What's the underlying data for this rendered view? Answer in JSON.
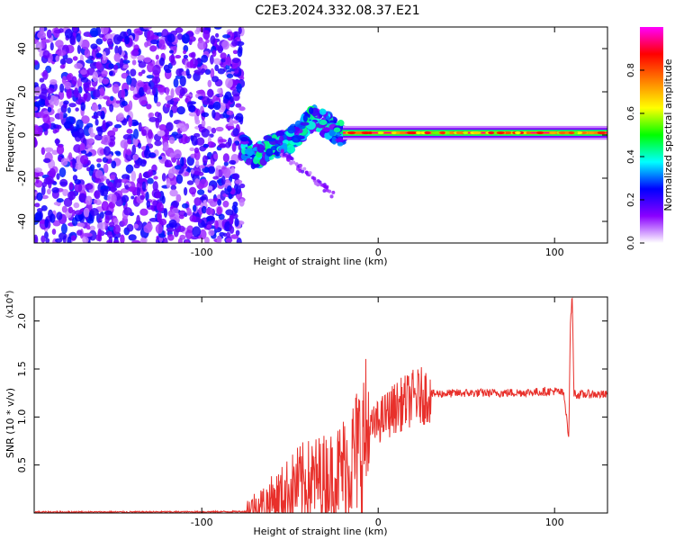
{
  "title": "C2E3.2024.332.08.37.E21",
  "chart_data": [
    {
      "type": "heatmap",
      "xlabel": "Height of straight line (km)",
      "ylabel": "Frequency (Hz)",
      "xlim": [
        -195,
        130
      ],
      "ylim": [
        -50,
        50
      ],
      "x_ticks": [
        -100,
        0,
        100
      ],
      "x_tick_labels": [
        "-100",
        "0",
        "100"
      ],
      "y_ticks": [
        -40,
        -20,
        0,
        20,
        40
      ],
      "y_tick_labels": [
        "-40",
        "-20",
        "0",
        "20",
        "40"
      ],
      "grid": false,
      "colorbar": {
        "label": "Normalized spectral amplitude",
        "range": [
          0,
          1
        ],
        "ticks": [
          0.0,
          0.2,
          0.4,
          0.6,
          0.8
        ],
        "tick_labels": [
          "0.0",
          "0.2",
          "0.4",
          "0.6",
          "0.8"
        ],
        "colors": [
          "#ffffff",
          "#8a00ff",
          "#0000ff",
          "#00ffff",
          "#00ff00",
          "#ffff00",
          "#ff8000",
          "#ff0000",
          "#ff00ff"
        ]
      },
      "regions": [
        {
          "description_x": [
            -195,
            -77
          ],
          "amplitude_level": 0.12,
          "pattern": "noise across all frequencies"
        },
        {
          "description_x": [
            -77,
            -20
          ],
          "amplitude_level": 0.3,
          "pattern": "curved streak near 0 Hz with branch descending to about -28 Hz"
        },
        {
          "description_x": [
            -20,
            130
          ],
          "amplitude_level": 0.75,
          "pattern": "steady band centered near 1 Hz"
        }
      ],
      "center_line": {
        "x": [
          -77,
          -70,
          -60,
          -50,
          -40,
          -35,
          -30,
          -25,
          -20,
          -10,
          0,
          20,
          50,
          80,
          100,
          110,
          130
        ],
        "y": [
          -5,
          -10,
          -5,
          -3,
          6,
          8,
          5,
          2,
          0,
          0,
          1,
          1,
          1,
          1,
          1,
          0,
          1
        ]
      }
    },
    {
      "type": "line",
      "xlabel": "Height of straight line (km)",
      "ylabel": "SNR (10 * v/v)",
      "y_scale_label": "(x10",
      "y_scale_exp": "4",
      "xlim": [
        -195,
        130
      ],
      "ylim": [
        0,
        22500
      ],
      "x_ticks": [
        -100,
        0,
        100
      ],
      "x_tick_labels": [
        "-100",
        "0",
        "100"
      ],
      "y_ticks": [
        5000,
        10000,
        15000,
        20000
      ],
      "y_tick_labels": [
        "0.5",
        "1.0",
        "1.5",
        "2.0"
      ],
      "grid": false,
      "color": "#e8302b",
      "series": [
        {
          "x": [
            -195,
            -150,
            -100,
            -75,
            -65,
            -55,
            -45,
            -35,
            -25,
            -15,
            -10,
            -5,
            0,
            10,
            20,
            30,
            50,
            70,
            90,
            100,
            105,
            107,
            108,
            109,
            110,
            111,
            113,
            120,
            130
          ],
          "y": [
            100,
            100,
            120,
            150,
            800,
            1800,
            3000,
            3500,
            3800,
            5500,
            7000,
            8500,
            9500,
            11000,
            12000,
            12400,
            12500,
            12500,
            12600,
            12700,
            12500,
            10000,
            7500,
            20000,
            22500,
            12500,
            12300,
            12400,
            12300
          ]
        }
      ]
    }
  ]
}
